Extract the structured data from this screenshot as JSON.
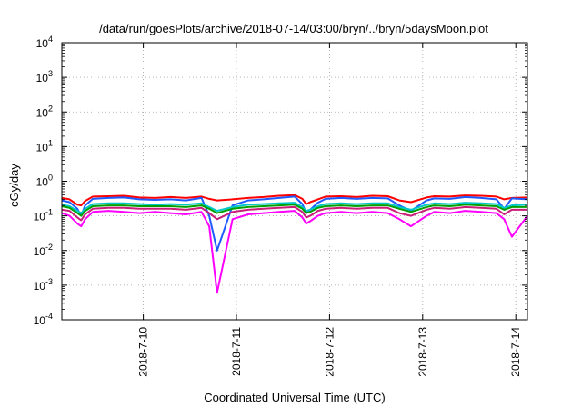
{
  "chart_data": {
    "type": "line",
    "title": "/data/run/goesPlots/archive/2018-07-14/03:00/bryn/../bryn/5daysMoon.plot",
    "xlabel": "Coordinated Universal Time (UTC)",
    "ylabel": "cGy/day",
    "yscale": "log",
    "ylim": [
      0.0001,
      10000
    ],
    "xlim": [
      "2018-07-09T03:00",
      "2018-07-14T03:00"
    ],
    "grid": true,
    "legend": "none",
    "y_ticks": [
      {
        "base": "10",
        "exp": "-4",
        "value": 0.0001
      },
      {
        "base": "10",
        "exp": "-3",
        "value": 0.001
      },
      {
        "base": "10",
        "exp": "-2",
        "value": 0.01
      },
      {
        "base": "10",
        "exp": "-1",
        "value": 0.1
      },
      {
        "base": "10",
        "exp": "0",
        "value": 1
      },
      {
        "base": "10",
        "exp": "1",
        "value": 10
      },
      {
        "base": "10",
        "exp": "2",
        "value": 100
      },
      {
        "base": "10",
        "exp": "3",
        "value": 1000
      },
      {
        "base": "10",
        "exp": "4",
        "value": 10000
      }
    ],
    "x_ticks": [
      {
        "label": "2018-7-10",
        "t": "2018-07-10T00:00"
      },
      {
        "label": "2018-7-11",
        "t": "2018-07-11T00:00"
      },
      {
        "label": "2018-7-12",
        "t": "2018-07-12T00:00"
      },
      {
        "label": "2018-7-13",
        "t": "2018-07-13T00:00"
      },
      {
        "label": "2018-7-14",
        "t": "2018-07-14T00:00"
      }
    ],
    "time_hours": [
      0,
      2,
      4,
      5,
      6,
      8,
      12,
      16,
      20,
      24,
      28,
      32,
      36,
      38,
      40,
      44,
      48,
      52,
      56,
      60,
      62,
      63,
      64,
      66,
      68,
      72,
      76,
      80,
      84,
      87,
      90,
      94,
      96,
      100,
      104,
      108,
      112,
      114,
      116,
      120
    ],
    "series": [
      {
        "color": "#ff0000",
        "values": [
          0.33,
          0.3,
          0.21,
          0.2,
          0.27,
          0.36,
          0.37,
          0.38,
          0.34,
          0.33,
          0.35,
          0.33,
          0.36,
          0.31,
          0.28,
          0.3,
          0.33,
          0.35,
          0.38,
          0.4,
          0.31,
          0.22,
          0.25,
          0.3,
          0.36,
          0.37,
          0.35,
          0.38,
          0.37,
          0.28,
          0.25,
          0.34,
          0.37,
          0.36,
          0.39,
          0.38,
          0.36,
          0.3,
          0.33,
          0.34
        ]
      },
      {
        "color": "#1e5aff",
        "values": [
          0.28,
          0.25,
          0.16,
          0.1,
          0.2,
          0.31,
          0.33,
          0.34,
          0.3,
          0.29,
          0.3,
          0.28,
          0.33,
          0.1,
          0.01,
          0.2,
          0.28,
          0.3,
          0.33,
          0.36,
          0.22,
          0.12,
          0.15,
          0.24,
          0.31,
          0.33,
          0.31,
          0.33,
          0.32,
          0.2,
          0.14,
          0.28,
          0.32,
          0.31,
          0.35,
          0.33,
          0.3,
          0.16,
          0.32,
          0.3
        ]
      },
      {
        "color": "#00c8c8",
        "values": [
          0.21,
          0.19,
          0.14,
          0.12,
          0.16,
          0.22,
          0.23,
          0.23,
          0.22,
          0.21,
          0.22,
          0.21,
          0.23,
          0.18,
          0.14,
          0.18,
          0.21,
          0.22,
          0.23,
          0.24,
          0.18,
          0.14,
          0.15,
          0.19,
          0.22,
          0.23,
          0.22,
          0.23,
          0.23,
          0.18,
          0.15,
          0.21,
          0.23,
          0.22,
          0.24,
          0.23,
          0.22,
          0.17,
          0.2,
          0.21
        ]
      },
      {
        "color": "#00a000",
        "values": [
          0.19,
          0.17,
          0.12,
          0.1,
          0.14,
          0.19,
          0.2,
          0.2,
          0.19,
          0.19,
          0.19,
          0.18,
          0.2,
          0.16,
          0.12,
          0.16,
          0.18,
          0.19,
          0.2,
          0.21,
          0.16,
          0.12,
          0.13,
          0.17,
          0.19,
          0.2,
          0.19,
          0.2,
          0.2,
          0.16,
          0.13,
          0.18,
          0.2,
          0.19,
          0.21,
          0.2,
          0.19,
          0.15,
          0.18,
          0.18
        ]
      },
      {
        "color": "#c81e78",
        "values": [
          0.15,
          0.14,
          0.09,
          0.075,
          0.11,
          0.16,
          0.17,
          0.17,
          0.16,
          0.16,
          0.16,
          0.15,
          0.17,
          0.12,
          0.08,
          0.13,
          0.15,
          0.16,
          0.17,
          0.18,
          0.13,
          0.09,
          0.1,
          0.14,
          0.16,
          0.17,
          0.16,
          0.17,
          0.17,
          0.12,
          0.1,
          0.15,
          0.17,
          0.16,
          0.18,
          0.17,
          0.16,
          0.11,
          0.15,
          0.15
        ]
      },
      {
        "color": "#ff00ff",
        "values": [
          0.12,
          0.1,
          0.06,
          0.05,
          0.08,
          0.13,
          0.14,
          0.13,
          0.12,
          0.13,
          0.12,
          0.11,
          0.13,
          0.05,
          0.0006,
          0.08,
          0.11,
          0.12,
          0.13,
          0.14,
          0.09,
          0.06,
          0.07,
          0.1,
          0.12,
          0.13,
          0.12,
          0.13,
          0.12,
          0.08,
          0.05,
          0.1,
          0.13,
          0.12,
          0.14,
          0.13,
          0.12,
          0.08,
          0.025,
          0.1
        ]
      }
    ]
  }
}
